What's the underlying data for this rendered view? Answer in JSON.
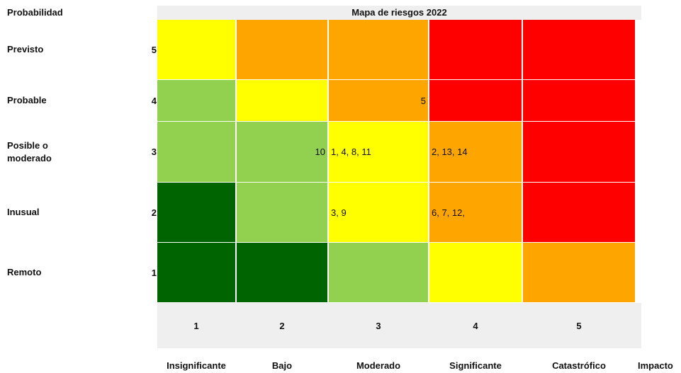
{
  "title": "Mapa de riesgos 2022",
  "y_title": "Probabilidad",
  "x_title": "Impacto",
  "rows": [
    {
      "label": "Previsto",
      "level": "5",
      "cells": [
        {
          "color": "#ffff00"
        },
        {
          "color": "#ffa500"
        },
        {
          "color": "#ffa500"
        },
        {
          "color": "#ff0000"
        },
        {
          "color": "#ff0000"
        }
      ]
    },
    {
      "label": "Probable",
      "level": "4",
      "cells": [
        {
          "color": "#92d050"
        },
        {
          "color": "#ffff00"
        },
        {
          "color": "#ffa500",
          "text": "5"
        },
        {
          "color": "#ff0000"
        },
        {
          "color": "#ff0000"
        }
      ]
    },
    {
      "label": "Posible o moderado",
      "level": "3",
      "cells": [
        {
          "color": "#92d050"
        },
        {
          "color": "#92d050",
          "text": "10"
        },
        {
          "color": "#ffff00",
          "text": "1, 4, 8, 11"
        },
        {
          "color": "#ffa500",
          "text": "2, 13, 14"
        },
        {
          "color": "#ff0000"
        }
      ]
    },
    {
      "label": "Inusual",
      "level": "2",
      "cells": [
        {
          "color": "#006400"
        },
        {
          "color": "#92d050"
        },
        {
          "color": "#ffff00",
          "text": "3, 9"
        },
        {
          "color": "#ffa500",
          "text": "6, 7, 12,"
        },
        {
          "color": "#ff0000"
        }
      ]
    },
    {
      "label": "Remoto",
      "level": "1",
      "cells": [
        {
          "color": "#006400"
        },
        {
          "color": "#006400"
        },
        {
          "color": "#92d050"
        },
        {
          "color": "#ffff00"
        },
        {
          "color": "#ffa500"
        }
      ]
    }
  ],
  "columns": [
    {
      "level": "1",
      "label": "Insignificante"
    },
    {
      "level": "2",
      "label": "Bajo"
    },
    {
      "level": "3",
      "label": "Moderado"
    },
    {
      "level": "4",
      "label": "Significante"
    },
    {
      "level": "5",
      "label": "Catastrófico"
    }
  ]
}
